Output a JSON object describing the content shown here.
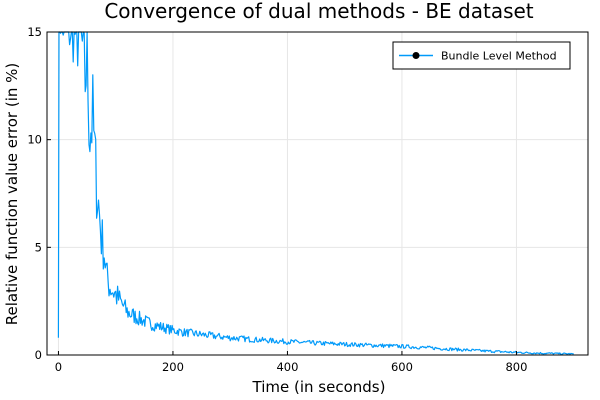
{
  "chart_data": {
    "type": "line",
    "title": "Convergence of dual methods - BE dataset",
    "xlabel": "Time (in seconds)",
    "ylabel": "Relative function value error (in %)",
    "xlim": [
      -20,
      925
    ],
    "ylim": [
      0,
      15
    ],
    "xticks": [
      0,
      200,
      400,
      600,
      800
    ],
    "yticks": [
      0,
      5,
      10,
      15
    ],
    "grid": true,
    "legend_position": "top-right",
    "series": [
      {
        "name": "Bundle Level Method",
        "color": "#009AFA",
        "marker": "circle",
        "x": [
          0,
          1,
          2,
          40,
          45,
          50,
          55,
          60,
          65,
          70,
          75,
          80,
          85,
          90,
          100,
          110,
          120,
          140,
          160,
          180,
          200,
          220,
          250,
          300,
          350,
          400,
          450,
          500,
          550,
          600,
          650,
          700,
          750,
          800,
          850,
          900
        ],
        "y": [
          0.8,
          15,
          15,
          15,
          12.5,
          14,
          10.5,
          11,
          8.5,
          7,
          5.5,
          4.8,
          3.5,
          3.2,
          2.8,
          2.4,
          2.0,
          1.7,
          1.45,
          1.3,
          1.15,
          1.05,
          0.95,
          0.8,
          0.7,
          0.62,
          0.55,
          0.5,
          0.45,
          0.4,
          0.33,
          0.25,
          0.18,
          0.12,
          0.08,
          0.05
        ],
        "noise": [
          0,
          0,
          0,
          2.5,
          3.0,
          3.0,
          2.6,
          2.3,
          2.0,
          1.6,
          1.3,
          1.1,
          0.9,
          0.8,
          0.7,
          0.55,
          0.45,
          0.35,
          0.3,
          0.25,
          0.22,
          0.2,
          0.18,
          0.15,
          0.13,
          0.12,
          0.11,
          0.1,
          0.1,
          0.09,
          0.08,
          0.07,
          0.06,
          0.05,
          0.04,
          0.03
        ]
      }
    ]
  }
}
